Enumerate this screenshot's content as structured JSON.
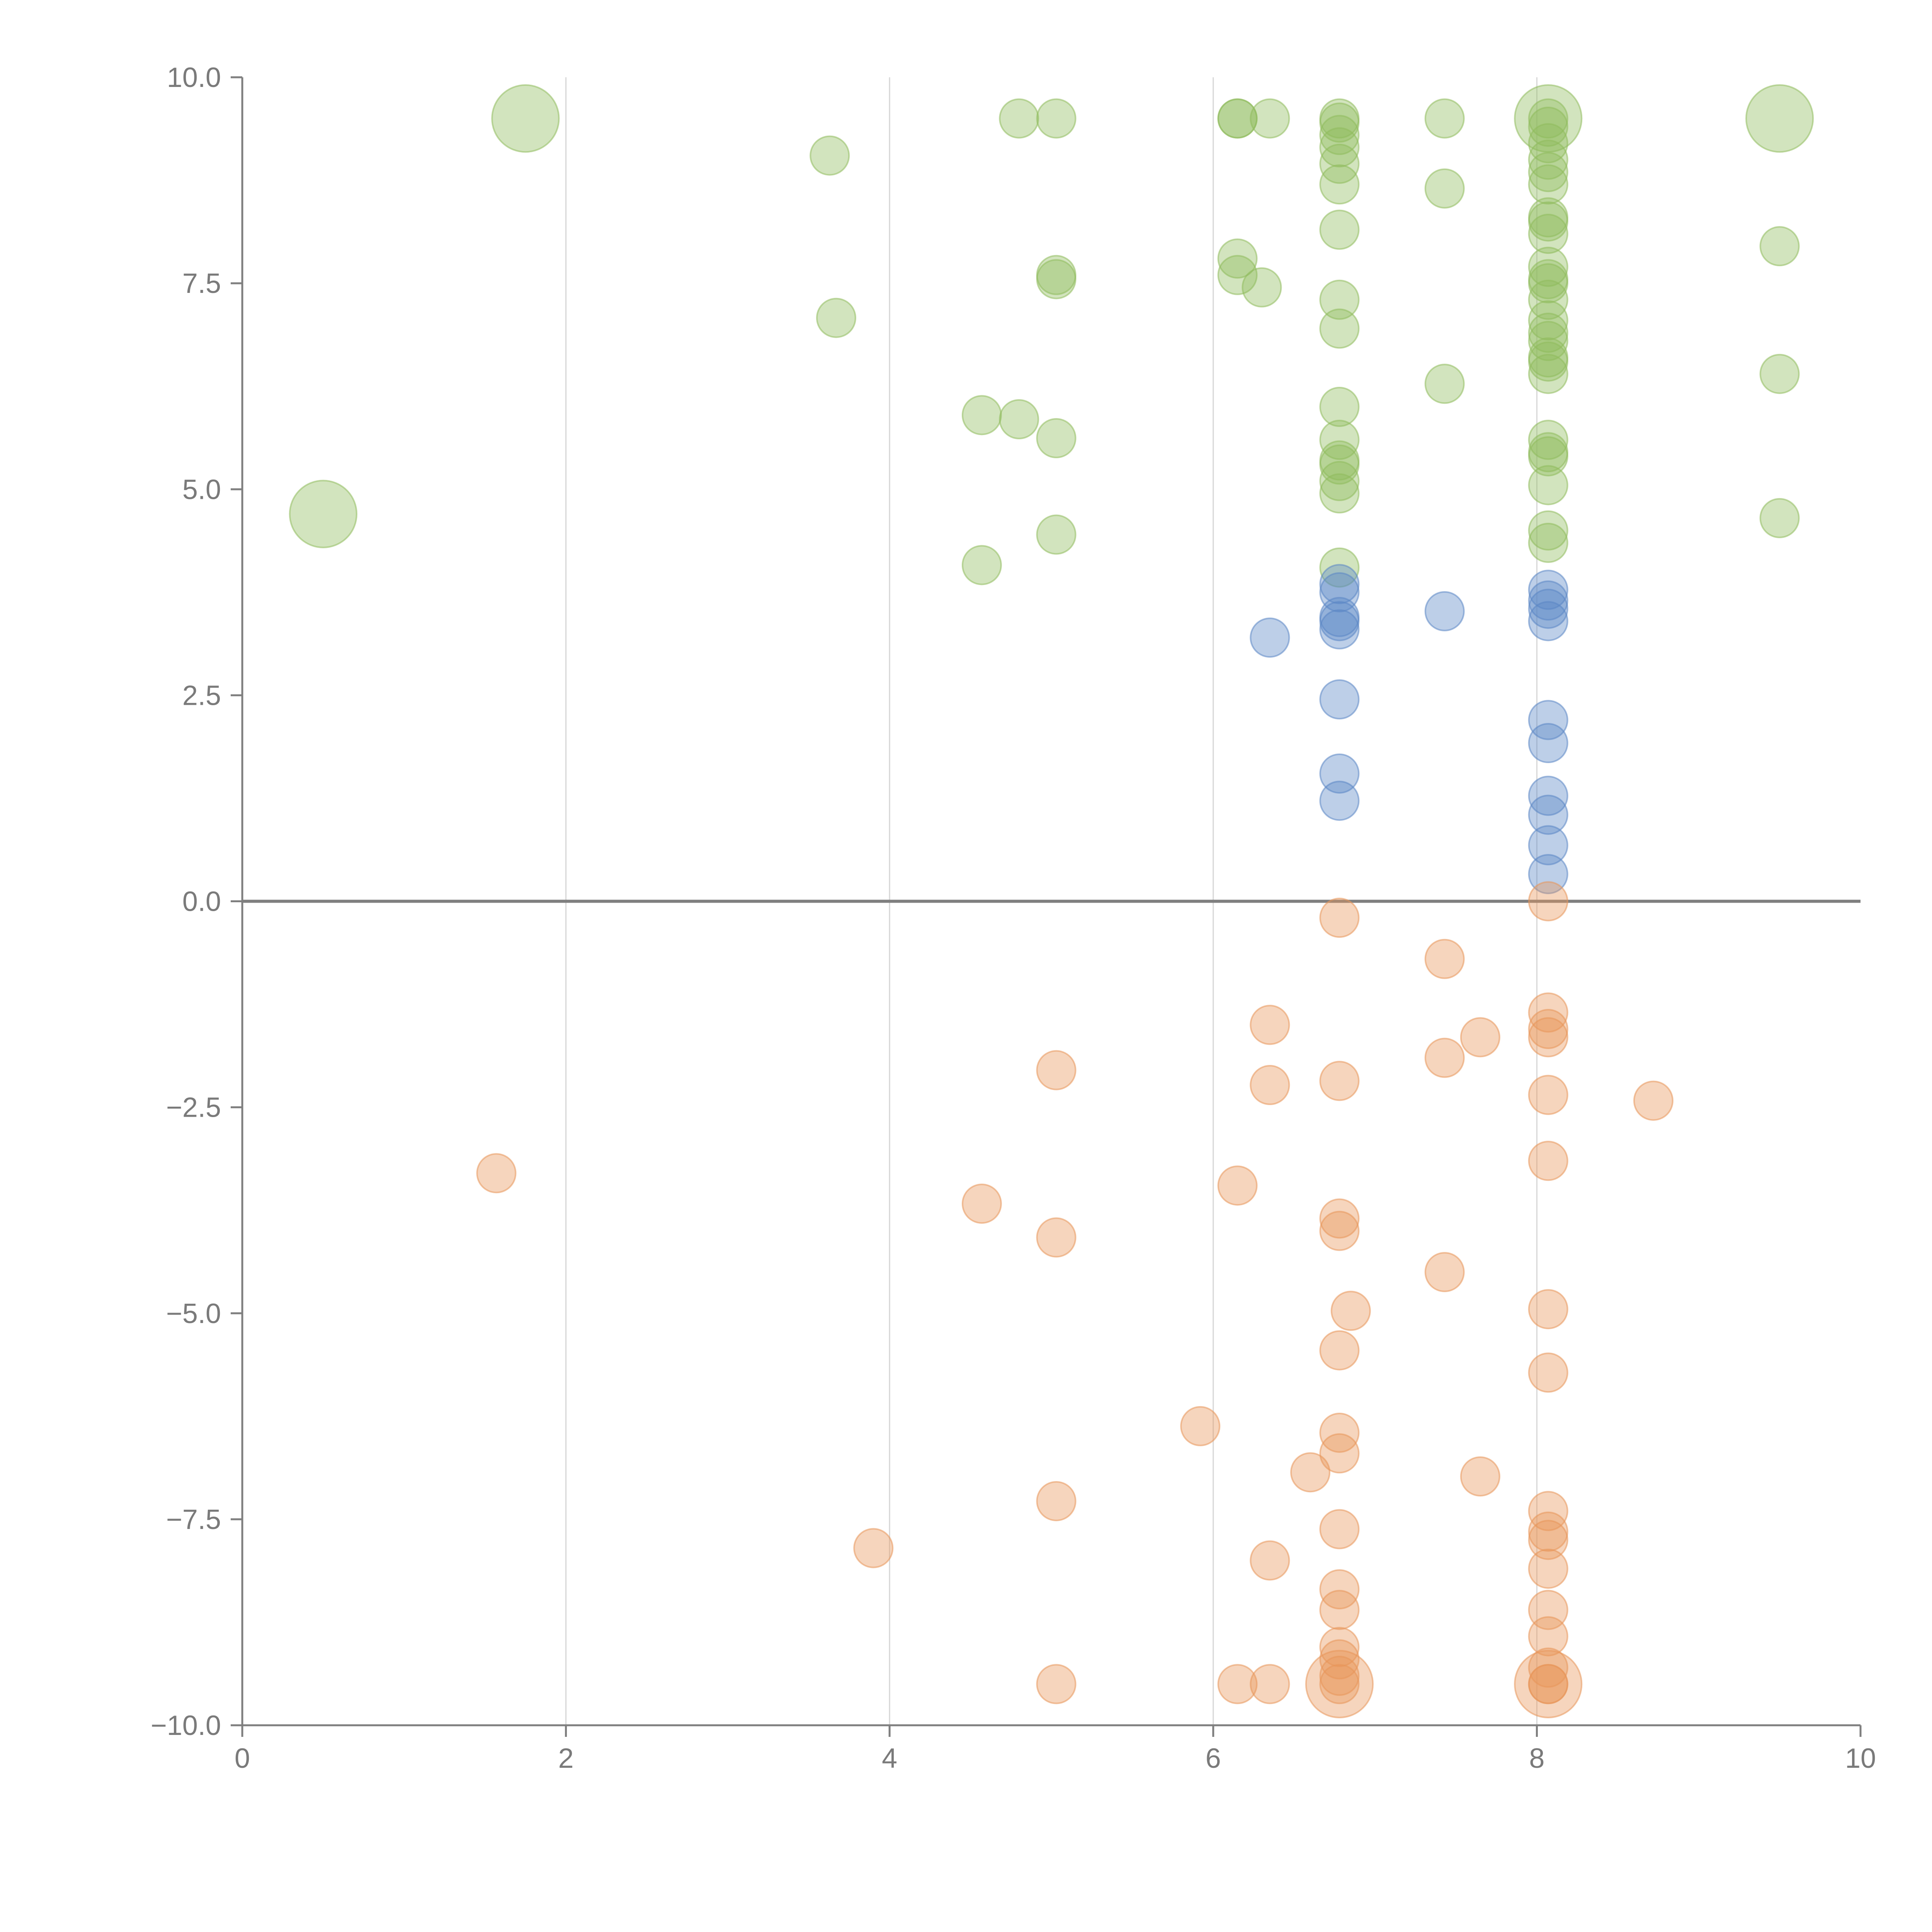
{
  "chart_data": {
    "type": "scatter",
    "title": "",
    "xlabel": "",
    "ylabel": "",
    "xlim": [
      0,
      10
    ],
    "ylim": [
      -10,
      10
    ],
    "x_ticks": [
      "0",
      "2",
      "4",
      "6",
      "8",
      "10"
    ],
    "y_ticks": [
      "10.0",
      "7.5",
      "5.0",
      "2.5",
      "0.0",
      "−2.5",
      "−5.0",
      "−7.5",
      "−10.0"
    ],
    "grid": "vertical",
    "reference_line_y": 0,
    "colors": {
      "green": "#8fbb5c",
      "blue": "#5b87c5",
      "orange": "#e8955a"
    },
    "series": [
      {
        "color": "green",
        "points": [
          [
            1.75,
            9.5,
            3
          ],
          [
            9.5,
            9.5,
            3
          ],
          [
            8.07,
            9.5,
            3
          ],
          [
            0.5,
            4.7,
            3
          ],
          [
            4.8,
            9.5,
            1
          ],
          [
            5.03,
            9.5,
            1
          ],
          [
            6.15,
            9.5,
            1
          ],
          [
            6.15,
            9.5,
            1
          ],
          [
            6.35,
            9.5,
            1
          ],
          [
            7.43,
            9.5,
            1
          ],
          [
            6.78,
            9.5,
            1
          ],
          [
            6.78,
            9.45,
            1
          ],
          [
            6.78,
            9.3,
            1
          ],
          [
            6.78,
            9.15,
            1
          ],
          [
            6.78,
            8.95,
            1
          ],
          [
            6.78,
            8.7,
            1
          ],
          [
            6.78,
            8.15,
            1
          ],
          [
            3.63,
            9.05,
            1
          ],
          [
            7.43,
            8.65,
            1
          ],
          [
            8.07,
            9.5,
            1
          ],
          [
            8.07,
            9.4,
            1
          ],
          [
            8.07,
            9.2,
            1
          ],
          [
            8.07,
            9.0,
            1
          ],
          [
            8.07,
            8.85,
            1
          ],
          [
            8.07,
            8.7,
            1
          ],
          [
            8.07,
            8.3,
            1
          ],
          [
            8.07,
            8.25,
            1
          ],
          [
            8.07,
            8.1,
            1
          ],
          [
            8.07,
            7.7,
            1
          ],
          [
            8.07,
            7.55,
            1
          ],
          [
            8.07,
            7.5,
            1
          ],
          [
            8.07,
            7.3,
            1
          ],
          [
            8.07,
            7.05,
            1
          ],
          [
            8.07,
            6.9,
            1
          ],
          [
            8.07,
            6.8,
            1
          ],
          [
            8.07,
            6.6,
            1
          ],
          [
            8.07,
            6.55,
            1
          ],
          [
            8.07,
            6.4,
            1
          ],
          [
            8.07,
            5.6,
            1
          ],
          [
            8.07,
            5.45,
            1
          ],
          [
            8.07,
            5.4,
            1
          ],
          [
            8.07,
            5.05,
            1
          ],
          [
            8.07,
            4.5,
            1
          ],
          [
            8.07,
            4.35,
            1
          ],
          [
            9.5,
            7.95,
            1
          ],
          [
            9.5,
            6.4,
            1
          ],
          [
            9.5,
            4.65,
            1
          ],
          [
            6.15,
            7.8,
            1
          ],
          [
            6.15,
            7.6,
            1
          ],
          [
            6.3,
            7.45,
            1
          ],
          [
            5.03,
            7.6,
            1
          ],
          [
            5.03,
            7.55,
            1
          ],
          [
            3.67,
            7.08,
            1
          ],
          [
            6.78,
            7.3,
            1
          ],
          [
            6.78,
            6.95,
            1
          ],
          [
            6.78,
            6.0,
            1
          ],
          [
            6.78,
            5.6,
            1
          ],
          [
            6.78,
            5.35,
            1
          ],
          [
            6.78,
            5.3,
            1
          ],
          [
            6.78,
            5.1,
            1
          ],
          [
            6.78,
            4.95,
            1
          ],
          [
            6.78,
            4.05,
            1
          ],
          [
            7.43,
            6.28,
            1
          ],
          [
            4.57,
            5.9,
            1
          ],
          [
            4.8,
            5.85,
            1
          ],
          [
            5.03,
            5.62,
            1
          ],
          [
            5.03,
            4.45,
            1
          ],
          [
            4.57,
            4.08,
            1
          ]
        ]
      },
      {
        "color": "blue",
        "points": [
          [
            6.78,
            3.85,
            1
          ],
          [
            6.78,
            3.75,
            1
          ],
          [
            6.78,
            3.45,
            1
          ],
          [
            6.78,
            3.4,
            1
          ],
          [
            6.78,
            3.3,
            1
          ],
          [
            6.78,
            2.45,
            1
          ],
          [
            6.78,
            1.55,
            1
          ],
          [
            6.78,
            1.22,
            1
          ],
          [
            6.35,
            3.2,
            1
          ],
          [
            7.43,
            3.52,
            1
          ],
          [
            8.07,
            3.78,
            1
          ],
          [
            8.07,
            3.65,
            1
          ],
          [
            8.07,
            3.55,
            1
          ],
          [
            8.07,
            3.4,
            1
          ],
          [
            8.07,
            2.2,
            1
          ],
          [
            8.07,
            1.92,
            1
          ],
          [
            8.07,
            1.28,
            1
          ],
          [
            8.07,
            1.05,
            1
          ],
          [
            8.07,
            0.68,
            1
          ],
          [
            8.07,
            0.33,
            1
          ]
        ]
      },
      {
        "color": "orange",
        "points": [
          [
            6.78,
            -9.5,
            3
          ],
          [
            8.07,
            -9.5,
            3
          ],
          [
            8.07,
            0.0,
            1
          ],
          [
            6.78,
            -0.2,
            1
          ],
          [
            7.43,
            -0.7,
            1
          ],
          [
            6.35,
            -1.5,
            1
          ],
          [
            7.65,
            -1.65,
            1
          ],
          [
            7.43,
            -1.9,
            1
          ],
          [
            8.07,
            -1.35,
            1
          ],
          [
            8.07,
            -1.55,
            1
          ],
          [
            8.07,
            -1.65,
            1
          ],
          [
            8.07,
            -2.35,
            1
          ],
          [
            8.07,
            -3.15,
            1
          ],
          [
            8.72,
            -2.42,
            1
          ],
          [
            5.03,
            -2.05,
            1
          ],
          [
            6.35,
            -2.23,
            1
          ],
          [
            6.78,
            -2.18,
            1
          ],
          [
            1.57,
            -3.3,
            1
          ],
          [
            6.15,
            -3.45,
            1
          ],
          [
            4.57,
            -3.67,
            1
          ],
          [
            5.03,
            -4.08,
            1
          ],
          [
            6.78,
            -3.85,
            1
          ],
          [
            6.78,
            -4.0,
            1
          ],
          [
            7.43,
            -4.5,
            1
          ],
          [
            6.85,
            -4.97,
            1
          ],
          [
            8.07,
            -4.95,
            1
          ],
          [
            6.78,
            -5.45,
            1
          ],
          [
            8.07,
            -5.72,
            1
          ],
          [
            5.92,
            -6.37,
            1
          ],
          [
            6.78,
            -6.45,
            1
          ],
          [
            6.78,
            -6.7,
            1
          ],
          [
            6.6,
            -6.93,
            1
          ],
          [
            7.65,
            -6.98,
            1
          ],
          [
            5.03,
            -7.28,
            1
          ],
          [
            3.9,
            -7.85,
            1
          ],
          [
            6.78,
            -7.62,
            1
          ],
          [
            6.35,
            -8.0,
            1
          ],
          [
            6.78,
            -8.35,
            1
          ],
          [
            6.78,
            -8.6,
            1
          ],
          [
            6.78,
            -9.05,
            1
          ],
          [
            6.78,
            -9.2,
            1
          ],
          [
            6.78,
            -9.4,
            1
          ],
          [
            6.78,
            -9.5,
            1
          ],
          [
            8.07,
            -7.4,
            1
          ],
          [
            8.07,
            -7.65,
            1
          ],
          [
            8.07,
            -7.75,
            1
          ],
          [
            8.07,
            -8.1,
            1
          ],
          [
            8.07,
            -8.6,
            1
          ],
          [
            8.07,
            -8.92,
            1
          ],
          [
            8.07,
            -9.3,
            1
          ],
          [
            8.07,
            -9.5,
            1
          ],
          [
            8.07,
            -9.5,
            1
          ],
          [
            5.03,
            -9.5,
            1
          ],
          [
            6.15,
            -9.5,
            1
          ],
          [
            6.35,
            -9.5,
            1
          ]
        ]
      }
    ]
  }
}
